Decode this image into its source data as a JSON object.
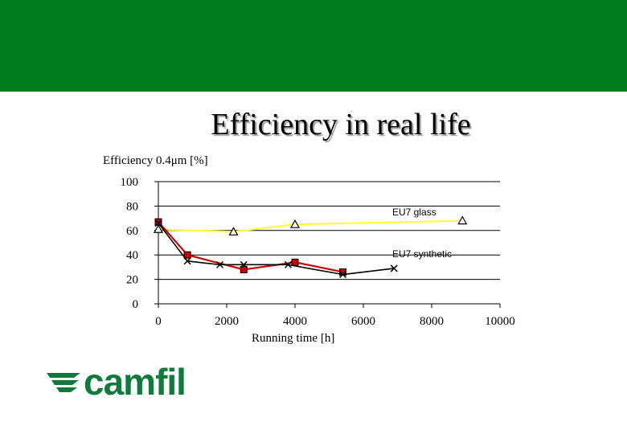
{
  "slide": {
    "title": "Efficiency in real life",
    "logo_text": "camfil",
    "colors": {
      "band": "#007a1f",
      "logo": "#0f7a3c"
    }
  },
  "chart_data": {
    "type": "line",
    "ylabel": "Efficiency 0.4μm [%]",
    "xlabel": "Running time [h]",
    "xlim": [
      0,
      10000
    ],
    "ylim": [
      0,
      100
    ],
    "xticks": [
      0,
      2000,
      4000,
      6000,
      8000,
      10000
    ],
    "yticks": [
      0,
      20,
      40,
      60,
      80,
      100
    ],
    "grid": "horizontal",
    "series": [
      {
        "name": "EU7 glass",
        "color": "#ffff40",
        "marker": "triangle",
        "x": [
          0,
          2200,
          4000,
          8900
        ],
        "y": [
          61,
          59,
          65,
          68
        ]
      },
      {
        "name": "EU7 synthetic",
        "color": "#cc0000",
        "marker": "square",
        "x": [
          0,
          850,
          2500,
          4000,
          5400
        ],
        "y": [
          67,
          40,
          28,
          34,
          26
        ]
      },
      {
        "name": "",
        "color": "#000000",
        "marker": "x",
        "x": [
          0,
          850,
          1800,
          2500,
          3800,
          5400,
          6900
        ],
        "y": [
          66,
          35,
          32,
          32,
          32,
          24,
          29
        ]
      }
    ]
  }
}
